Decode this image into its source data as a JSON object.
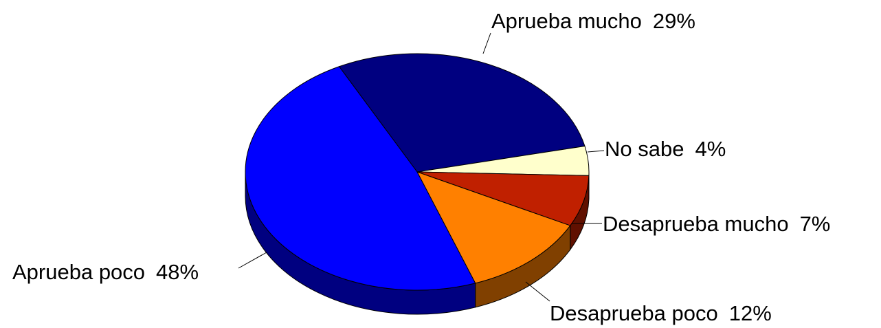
{
  "chart_data": {
    "type": "pie",
    "categories": [
      "Aprueba mucho",
      "No sabe",
      "Desaprueba mucho",
      "Desaprueba poco",
      "Aprueba poco"
    ],
    "values": [
      29,
      4,
      7,
      12,
      48
    ],
    "value_labels": [
      "29%",
      "4%",
      "7%",
      "12%",
      "48%"
    ],
    "colors": [
      "#000080",
      "#ffffcc",
      "#c02000",
      "#ff8000",
      "#0000ff"
    ]
  }
}
